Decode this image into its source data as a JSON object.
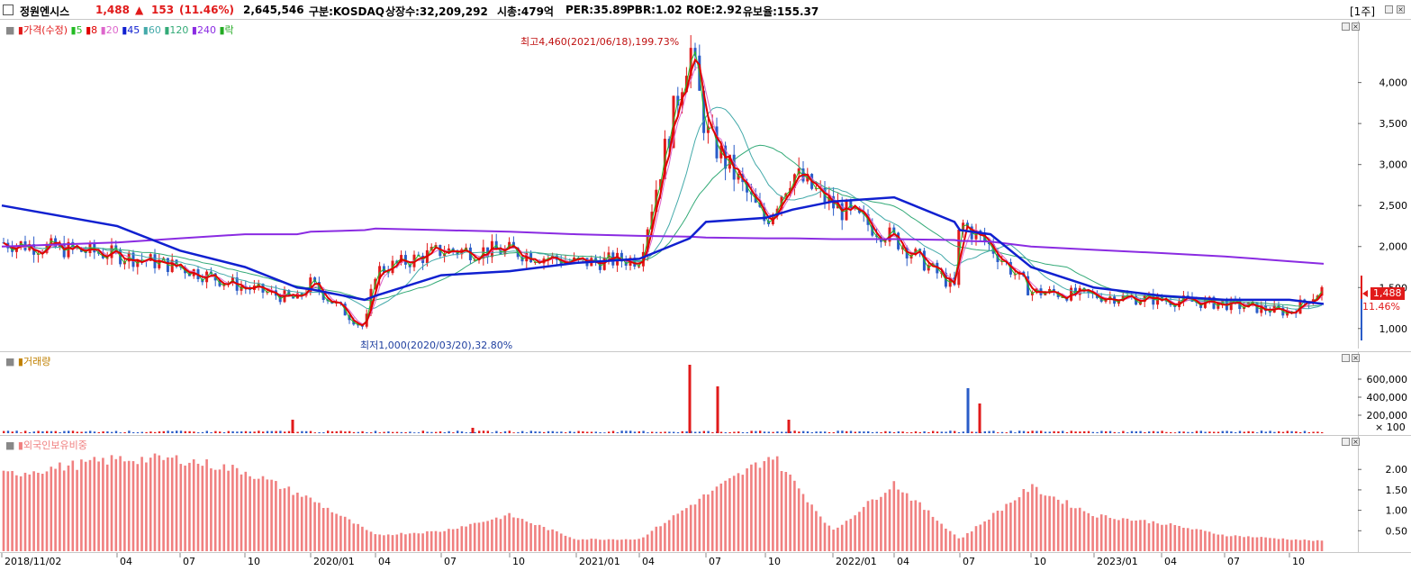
{
  "header": {
    "stock_name": "정원엔시스",
    "price": "1,488",
    "change_arrow": "▲",
    "change": "153",
    "change_pct": "(11.46%)",
    "volume": "2,645,546",
    "market": "구분:KOSDAQ",
    "listed_shares": "상장수:32,209,292",
    "market_cap": "시총:479억",
    "per": "PER:35.89",
    "pbr": "PBR:1.02",
    "roe": "ROE:2.92",
    "retention": "유보율:155.37",
    "period": "[1주]"
  },
  "colors": {
    "up": "#e11a1a",
    "down": "#2a5cc8",
    "ma5": "#22bb22",
    "ma8": "#e00000",
    "ma20": "#dd66cc",
    "ma45": "#1020d0",
    "ma60": "#44aaaa",
    "ma120": "#33aa77",
    "ma240": "#8a2be2",
    "foreign_bar": "#f08080"
  },
  "price_pane": {
    "legend": {
      "price": "가격(수정)",
      "ma": [
        "5",
        "8",
        "20",
        "45",
        "60",
        "120",
        "240"
      ],
      "extra": "락"
    },
    "high_annotation": "최고4,460(2021/06/18),199.73%",
    "low_annotation": "최저1,000(2020/03/20),32.80%",
    "price_tag": "1,488",
    "pct_tag": "11.46%"
  },
  "volume_pane": {
    "legend": "거래량",
    "unit": "× 100"
  },
  "foreign_pane": {
    "legend": "외국인보유비중"
  },
  "x_labels": [
    "2018/11/02",
    "04",
    "07",
    "10",
    "2020/01",
    "04",
    "07",
    "10",
    "2021/01",
    "04",
    "07",
    "10",
    "2022/01",
    "04",
    "07",
    "10",
    "2023/01",
    "04",
    "07",
    "10"
  ],
  "chart_data": [
    {
      "type": "line",
      "title": "가격(수정)",
      "yticks": [
        "1,000",
        "1,500",
        "2,000",
        "2,500",
        "3,000",
        "3,500",
        "4,000"
      ],
      "ylim": [
        800,
        4600
      ],
      "x": [
        "2018/11",
        "2019/01",
        "2019/04",
        "2019/07",
        "2019/10",
        "2020/01",
        "2020/03",
        "2020/04",
        "2020/07",
        "2020/10",
        "2021/01",
        "2021/04",
        "2021/06",
        "2021/07",
        "2021/10",
        "2021/11",
        "2022/01",
        "2022/04",
        "2022/06",
        "2022/07",
        "2022/08",
        "2022/10",
        "2023/01",
        "2023/04",
        "2023/07",
        "2023/10",
        "2023/12"
      ],
      "series": [
        {
          "name": "가격(수정)",
          "values": [
            2050,
            1900,
            1750,
            1500,
            1350,
            1550,
            1000,
            1700,
            1950,
            1950,
            1800,
            1850,
            4460,
            3400,
            2300,
            2900,
            2500,
            2100,
            1500,
            2300,
            2000,
            1450,
            1400,
            1350,
            1300,
            1200,
            1488
          ]
        },
        {
          "name": "240",
          "values": [
            2000,
            2050,
            2100,
            2150,
            2150,
            2180,
            2200,
            2220,
            2200,
            2180,
            2150,
            2130,
            2120,
            2110,
            2100,
            2100,
            2090,
            2090,
            2080,
            2070,
            2060,
            2000,
            1960,
            1920,
            1880,
            1820,
            1790
          ]
        },
        {
          "name": "45",
          "values": [
            2500,
            2250,
            1950,
            1750,
            1500,
            1480,
            1350,
            1400,
            1650,
            1700,
            1800,
            1850,
            2100,
            2300,
            2350,
            2450,
            2550,
            2600,
            2300,
            2200,
            2150,
            1750,
            1500,
            1400,
            1350,
            1350,
            1300
          ]
        }
      ]
    },
    {
      "type": "bar",
      "title": "거래량",
      "yticks": [
        "200,000",
        "400,000",
        "600,000"
      ],
      "ylim": [
        0,
        800000
      ],
      "x": [
        "2019/10",
        "2020/08",
        "2021/06",
        "2021/07",
        "2021/11",
        "2022/07",
        "2022/08"
      ],
      "values": [
        150000,
        60000,
        760000,
        520000,
        150000,
        500000,
        330000
      ]
    },
    {
      "type": "bar",
      "title": "외국인보유비중",
      "yticks": [
        "0.50",
        "1.00",
        "1.50",
        "2.00"
      ],
      "ylim": [
        0,
        2.6
      ],
      "x": [
        "2018/11",
        "2019/04",
        "2019/07",
        "2019/10",
        "2020/01",
        "2020/04",
        "2020/07",
        "2020/10",
        "2021/01",
        "2021/04",
        "2021/07",
        "2021/10",
        "2022/01",
        "2022/04",
        "2022/07",
        "2022/10",
        "2023/01",
        "2023/04",
        "2023/07",
        "2023/10",
        "2023/12"
      ],
      "values": [
        1.9,
        2.3,
        2.3,
        2.0,
        1.3,
        0.4,
        0.5,
        0.9,
        0.3,
        0.3,
        1.4,
        2.4,
        0.5,
        1.7,
        0.3,
        1.6,
        0.9,
        0.7,
        0.4,
        0.3,
        0.25
      ]
    }
  ]
}
